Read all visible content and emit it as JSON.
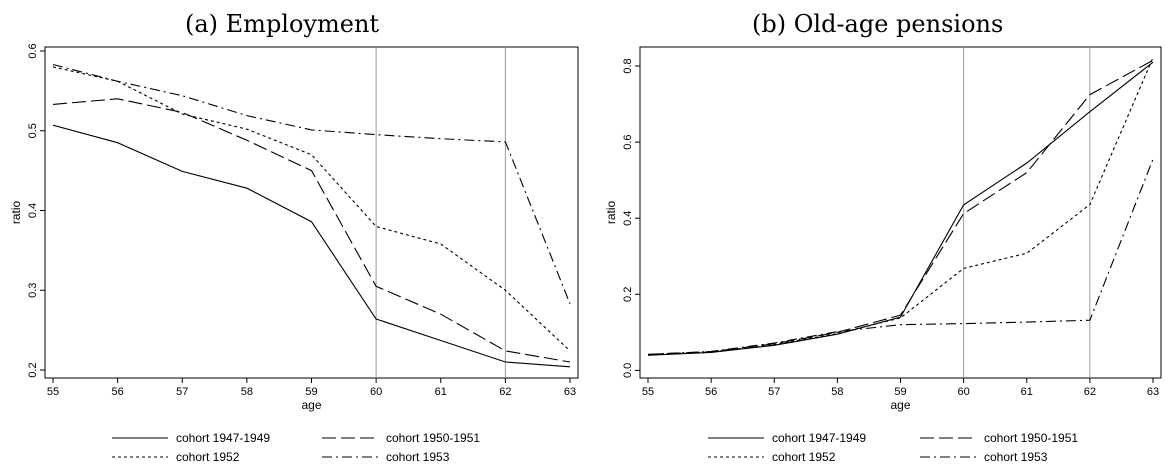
{
  "chart_data": [
    {
      "type": "line",
      "title": "(a) Employment",
      "xlabel": "age",
      "ylabel": "ratio",
      "x": [
        55,
        56,
        57,
        58,
        59,
        60,
        61,
        62,
        63
      ],
      "xlim": [
        55,
        63
      ],
      "ylim": [
        0.19,
        0.605
      ],
      "yticks": [
        "0.2",
        "0.3",
        "0.4",
        "0.5",
        "0.6"
      ],
      "vlines": [
        60,
        62
      ],
      "legend_position": "bottom",
      "series": [
        {
          "name": "cohort 1947-1949",
          "style": "solid",
          "values": [
            0.507,
            0.485,
            0.449,
            0.428,
            0.386,
            0.264,
            0.237,
            0.21,
            0.204
          ]
        },
        {
          "name": "cohort 1950-1951",
          "style": "longdash",
          "values": [
            0.533,
            0.54,
            0.523,
            0.488,
            0.45,
            0.305,
            0.27,
            0.224,
            0.21
          ]
        },
        {
          "name": "cohort 1952",
          "style": "dotted",
          "values": [
            0.58,
            0.562,
            0.521,
            0.502,
            0.47,
            0.38,
            0.358,
            0.3,
            0.224
          ]
        },
        {
          "name": "cohort 1953",
          "style": "dashdot",
          "values": [
            0.583,
            0.562,
            0.544,
            0.519,
            0.501,
            0.495,
            0.49,
            0.486,
            0.283
          ]
        }
      ]
    },
    {
      "type": "line",
      "title": "(b) Old-age pensions",
      "xlabel": "age",
      "ylabel": "ratio",
      "x": [
        55,
        56,
        57,
        58,
        59,
        60,
        61,
        62,
        63
      ],
      "xlim": [
        55,
        63
      ],
      "ylim": [
        -0.02,
        0.85
      ],
      "yticks": [
        "0.0",
        "0.2",
        "0.4",
        "0.6",
        "0.8"
      ],
      "vlines": [
        60,
        62
      ],
      "legend_position": "bottom",
      "series": [
        {
          "name": "cohort 1947-1949",
          "style": "solid",
          "values": [
            0.04,
            0.047,
            0.066,
            0.095,
            0.14,
            0.435,
            0.545,
            0.68,
            0.81
          ]
        },
        {
          "name": "cohort 1950-1951",
          "style": "longdash",
          "values": [
            0.042,
            0.049,
            0.07,
            0.1,
            0.145,
            0.412,
            0.52,
            0.725,
            0.815
          ]
        },
        {
          "name": "cohort 1952",
          "style": "dotted",
          "values": [
            0.04,
            0.048,
            0.068,
            0.097,
            0.138,
            0.268,
            0.308,
            0.436,
            0.822
          ]
        },
        {
          "name": "cohort 1953",
          "style": "dashdot",
          "values": [
            0.042,
            0.05,
            0.072,
            0.102,
            0.12,
            0.123,
            0.127,
            0.132,
            0.555
          ]
        }
      ]
    }
  ]
}
